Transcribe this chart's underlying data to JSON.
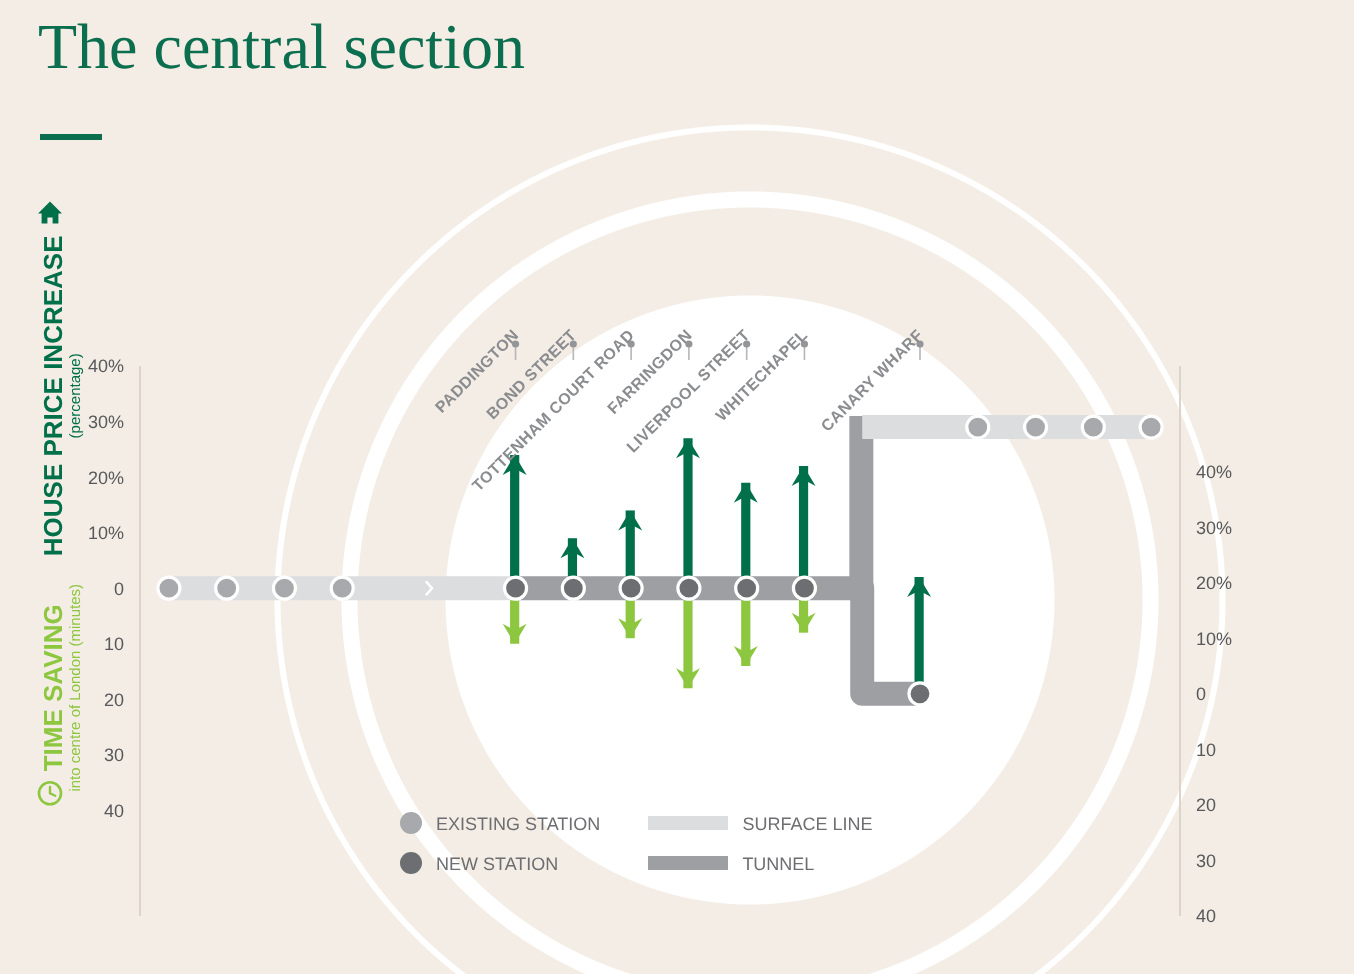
{
  "chart_data": {
    "type": "bar",
    "title": "The central section",
    "categories": [
      null,
      null,
      null,
      null,
      null,
      null,
      "PADDINGTON",
      "BOND STREET",
      "TOTTENHAM COURT ROAD",
      "FARRINGDON",
      "LIVERPOOL STREET",
      "WHITECHAPEL",
      null,
      "CANARY WHARF",
      null,
      null,
      null,
      null
    ],
    "stacked": true,
    "series": [
      {
        "name": "HOUSE PRICE INCREASE\n(percentage)",
        "color": "#00704a",
        "values": [
          null,
          null,
          null,
          null,
          null,
          null,
          24,
          9,
          14,
          27,
          19,
          22,
          null,
          null,
          null,
          null,
          null,
          null
        ]
      },
      {
        "name": "TIME SAVING\ninto centre of London (minutes)",
        "color": "#8dc63f",
        "values": [
          null,
          null,
          null,
          null,
          null,
          null,
          -10,
          null,
          -9,
          -18,
          -14,
          -8,
          null,
          null,
          null,
          null,
          null,
          null
        ]
      },
      {
        "axis": "y2",
        "color": "#00704a",
        "values": [
          null,
          null,
          null,
          null,
          null,
          null,
          null,
          null,
          null,
          null,
          null,
          null,
          null,
          21,
          null,
          null,
          null,
          null
        ]
      },
      {
        "name": "EXISTING STATION",
        "type": "scatter",
        "color": "#a7a9ac",
        "values": [
          0,
          0,
          0,
          0,
          null,
          null,
          null,
          null,
          null,
          null,
          null,
          null,
          null,
          null,
          null,
          null,
          null,
          null
        ]
      },
      {
        "name": "SURFACE LINE",
        "type": "line",
        "color": "#dcdddf",
        "values": [
          0,
          0,
          0,
          0,
          0,
          0,
          0,
          null,
          null,
          null,
          null,
          null,
          null,
          null,
          null,
          null,
          null,
          null
        ]
      },
      {
        "name": "NEW STATION",
        "type": "scatter",
        "color": "#6d6e71",
        "values": [
          null,
          null,
          null,
          null,
          null,
          null,
          0,
          0,
          0,
          0,
          0,
          0,
          null,
          null,
          null,
          null,
          null,
          null
        ]
      },
      {
        "name": "TUNNEL",
        "type": "step",
        "color": "#9d9fa2",
        "values": [
          null,
          null,
          null,
          null,
          null,
          null,
          0,
          0,
          0,
          0,
          0,
          0,
          0,
          -19,
          null,
          null,
          null,
          null
        ]
      },
      {
        "axis": "y2",
        "color": "#9d9fa2",
        "values": [
          null,
          null,
          null,
          null,
          null,
          null,
          null,
          null,
          null,
          null,
          null,
          null,
          31,
          null,
          null,
          null,
          null,
          null
        ],
        "base": [
          null,
          null,
          null,
          null,
          null,
          null,
          null,
          null,
          null,
          null,
          null,
          null,
          19,
          null,
          null,
          null,
          null,
          null
        ]
      },
      {
        "type": "line",
        "axis": "y2",
        "color": "#dcdddf",
        "values": [
          null,
          null,
          null,
          null,
          null,
          null,
          null,
          null,
          null,
          null,
          null,
          null,
          48,
          48,
          48,
          48,
          48,
          48
        ]
      },
      {
        "type": "scatter",
        "axis": "y2",
        "color": "#a7a9ac",
        "values": [
          null,
          null,
          null,
          null,
          null,
          null,
          null,
          null,
          null,
          null,
          null,
          null,
          null,
          null,
          48,
          48,
          48,
          48
        ]
      },
      {
        "type": "scatter",
        "axis": "y2",
        "color": "#6d6e71",
        "values": [
          null,
          null,
          null,
          null,
          null,
          null,
          null,
          null,
          null,
          null,
          null,
          null,
          null,
          0,
          null,
          null,
          null,
          null
        ]
      }
    ],
    "ylim": [
      -59,
      40
    ],
    "yticks": [
      {
        "value": 40,
        "label": "40%"
      },
      {
        "value": 30,
        "label": "30%"
      },
      {
        "value": 20,
        "label": "20%"
      },
      {
        "value": 10,
        "label": "10%"
      },
      {
        "value": 0,
        "label": "0"
      },
      {
        "value": -10,
        "label": "10"
      },
      {
        "value": -20,
        "label": "20"
      },
      {
        "value": -30,
        "label": "30"
      },
      {
        "value": -40,
        "label": "40"
      }
    ],
    "y2lim": [
      -40,
      59
    ],
    "y2ticks": [
      {
        "value": 40,
        "label": "40%"
      },
      {
        "value": 30,
        "label": "30%"
      },
      {
        "value": 20,
        "label": "20%"
      },
      {
        "value": 10,
        "label": "10%"
      },
      {
        "value": 0,
        "label": "0"
      },
      {
        "value": -10,
        "label": "10"
      },
      {
        "value": -20,
        "label": "20"
      },
      {
        "value": -30,
        "label": "30"
      },
      {
        "value": -40,
        "label": "40"
      }
    ],
    "legend": "bottom"
  }
}
